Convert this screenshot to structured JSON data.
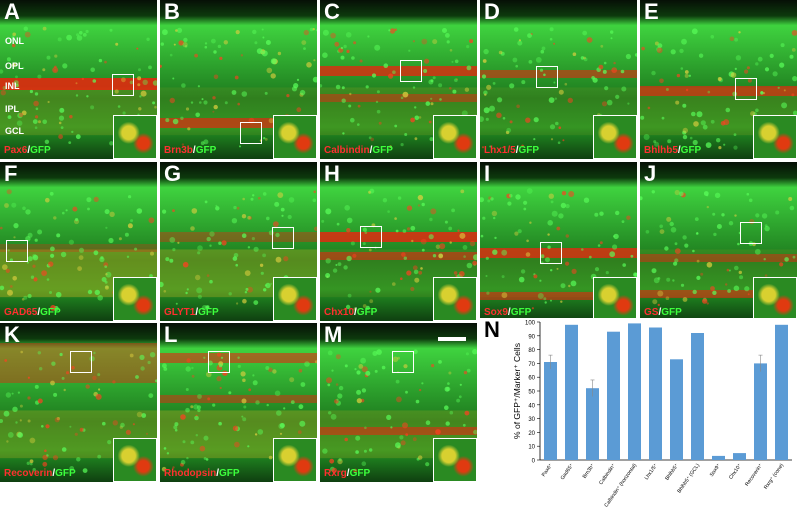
{
  "panels": [
    {
      "letter": "A",
      "marker": "Pax6",
      "sep": "/",
      "gfp": "GFP"
    },
    {
      "letter": "B",
      "marker": "Brn3b",
      "sep": "/",
      "gfp": "GFP"
    },
    {
      "letter": "C",
      "marker": "Calbindin",
      "sep": "/",
      "gfp": "GFP"
    },
    {
      "letter": "D",
      "marker": "Lhx1/5",
      "sep": "/",
      "gfp": "GFP"
    },
    {
      "letter": "E",
      "marker": "Bhlhb5",
      "sep": "/",
      "gfp": "GFP"
    },
    {
      "letter": "F",
      "marker": "GAD65",
      "sep": "/",
      "gfp": "GFP"
    },
    {
      "letter": "G",
      "marker": "GLYT1",
      "sep": "/",
      "gfp": "GFP"
    },
    {
      "letter": "H",
      "marker": "Chx10",
      "sep": "/",
      "gfp": "GFP"
    },
    {
      "letter": "I",
      "marker": "Sox9",
      "sep": "/",
      "gfp": "GFP"
    },
    {
      "letter": "J",
      "marker": "GS",
      "sep": "/",
      "gfp": "GFP"
    },
    {
      "letter": "K",
      "marker": "Recoverin",
      "sep": "/",
      "gfp": "GFP"
    },
    {
      "letter": "L",
      "marker": "Rhodopsin",
      "sep": "/",
      "gfp": "GFP"
    },
    {
      "letter": "M",
      "marker": "Rxrg",
      "sep": "/",
      "gfp": "GFP"
    }
  ],
  "layers": [
    "ONL",
    "OPL",
    "INL",
    "IPL",
    "GCL"
  ],
  "chart_letter": "N",
  "chart_data": {
    "type": "bar",
    "ylabel": "% of GFP⁺/Marker⁺ Cells",
    "ylim": [
      0,
      100
    ],
    "yticks": [
      0,
      10,
      20,
      30,
      40,
      50,
      60,
      70,
      80,
      90,
      100
    ],
    "categories": [
      "Pax6⁺",
      "Gad65⁺",
      "Brn3b⁺",
      "Calbindin⁺",
      "Calbindin⁺ (horizontal)",
      "Lhx1/5⁺",
      "Bhlhb5⁺",
      "Bhlhb5⁺ (GCL)",
      "Sox9⁺",
      "Chx10⁺",
      "Recoverin⁺",
      "Rxrg⁺ (cone)"
    ],
    "values": [
      71,
      98,
      52,
      93,
      99,
      96,
      73,
      92,
      3,
      5,
      70,
      98
    ],
    "errors": [
      5,
      0,
      6,
      0,
      0,
      0,
      0,
      0,
      0,
      0,
      6,
      0
    ],
    "color": "#5b9bd5",
    "grid": false
  }
}
